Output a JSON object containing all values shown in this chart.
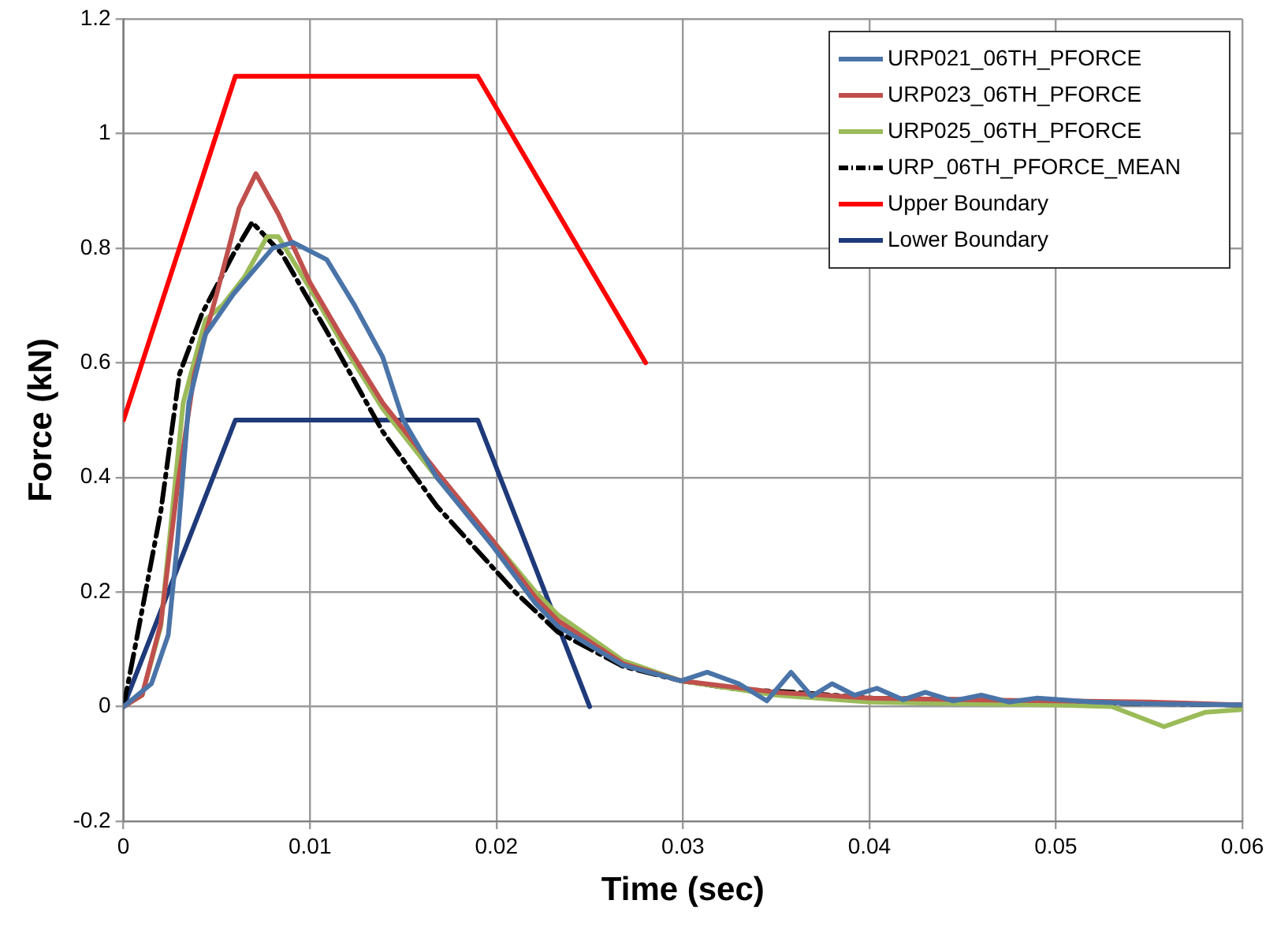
{
  "chart_data": {
    "type": "line",
    "xlabel": "Time (sec)",
    "ylabel": "Force (kN)",
    "xlim": [
      0,
      0.06
    ],
    "xticks": [
      0,
      0.01,
      0.02,
      0.03,
      0.04,
      0.05,
      0.06
    ],
    "ylim": [
      -0.2,
      1.2
    ],
    "yticks": [
      -0.2,
      0,
      0.2,
      0.4,
      0.6,
      0.8,
      1,
      1.2
    ],
    "grid": true,
    "legend": "top right",
    "marker": "none",
    "series": [
      {
        "name": "URP021_06TH_PFORCE",
        "color": "#4a74a8",
        "x": [
          0,
          0.0015,
          0.0024,
          0.0029,
          0.0035,
          0.0044,
          0.0059,
          0.008,
          0.0091,
          0.0109,
          0.0124,
          0.0139,
          0.015,
          0.0168,
          0.0198,
          0.0221,
          0.0233,
          0.0268,
          0.0299,
          0.0313,
          0.033,
          0.0345,
          0.0358,
          0.0369,
          0.038,
          0.0392,
          0.0404,
          0.0418,
          0.043,
          0.0445,
          0.046,
          0.0475,
          0.049,
          0.052,
          0.055,
          0.06
        ],
        "values": [
          0,
          0.04,
          0.125,
          0.29,
          0.53,
          0.65,
          0.72,
          0.8,
          0.81,
          0.78,
          0.7,
          0.61,
          0.5,
          0.4,
          0.28,
          0.18,
          0.14,
          0.072,
          0.045,
          0.06,
          0.04,
          0.01,
          0.06,
          0.018,
          0.04,
          0.02,
          0.032,
          0.012,
          0.025,
          0.01,
          0.02,
          0.008,
          0.015,
          0.008,
          0.005,
          0.003
        ]
      },
      {
        "name": "URP023_06TH_PFORCE",
        "color": "#c0504d",
        "x": [
          0,
          0.001,
          0.002,
          0.0029,
          0.0038,
          0.005,
          0.0062,
          0.0071,
          0.0083,
          0.01,
          0.0118,
          0.0139,
          0.0168,
          0.0198,
          0.0221,
          0.0233,
          0.0268,
          0.0299,
          0.035,
          0.04,
          0.045,
          0.05,
          0.055,
          0.06
        ],
        "values": [
          0,
          0.02,
          0.145,
          0.385,
          0.58,
          0.72,
          0.87,
          0.93,
          0.86,
          0.74,
          0.64,
          0.53,
          0.41,
          0.29,
          0.19,
          0.15,
          0.075,
          0.045,
          0.025,
          0.015,
          0.012,
          0.01,
          0.008,
          0.003
        ]
      },
      {
        "name": "URP025_06TH_PFORCE",
        "color": "#9bbb59",
        "x": [
          0,
          0.001,
          0.002,
          0.0032,
          0.0044,
          0.0053,
          0.0065,
          0.0077,
          0.0083,
          0.01,
          0.0118,
          0.0139,
          0.0168,
          0.0198,
          0.0221,
          0.0233,
          0.0268,
          0.0299,
          0.035,
          0.04,
          0.045,
          0.05,
          0.053,
          0.0558,
          0.058,
          0.06
        ],
        "values": [
          0,
          0.02,
          0.14,
          0.53,
          0.675,
          0.7,
          0.75,
          0.82,
          0.82,
          0.73,
          0.63,
          0.52,
          0.4,
          0.29,
          0.2,
          0.16,
          0.08,
          0.045,
          0.02,
          0.008,
          0.005,
          0.003,
          0,
          -0.035,
          -0.01,
          -0.005
        ]
      },
      {
        "name": "URP_06TH_PFORCE_MEAN",
        "color": "#000000",
        "line_style": "dashed",
        "x": [
          0,
          0.0006,
          0.002,
          0.003,
          0.0042,
          0.0059,
          0.0069,
          0.0085,
          0.0109,
          0.0139,
          0.0168,
          0.021,
          0.0233,
          0.0268,
          0.0299,
          0.033,
          0.036,
          0.04,
          0.045,
          0.05,
          0.055,
          0.06
        ],
        "values": [
          0,
          0.1,
          0.34,
          0.58,
          0.685,
          0.79,
          0.845,
          0.79,
          0.655,
          0.48,
          0.35,
          0.2,
          0.13,
          0.07,
          0.045,
          0.03,
          0.025,
          0.015,
          0.012,
          null,
          0.005,
          0.003
        ]
      },
      {
        "name": "Upper Boundary",
        "color": "#ff0000",
        "x": [
          0,
          0.006,
          0.019,
          0.028
        ],
        "values": [
          0.5,
          1.1,
          1.1,
          0.6
        ]
      },
      {
        "name": "Lower Boundary",
        "color": "#1f3a7a",
        "x": [
          0,
          0.006,
          0.019,
          0.025
        ],
        "values": [
          0,
          0.5,
          0.5,
          0
        ]
      }
    ]
  }
}
